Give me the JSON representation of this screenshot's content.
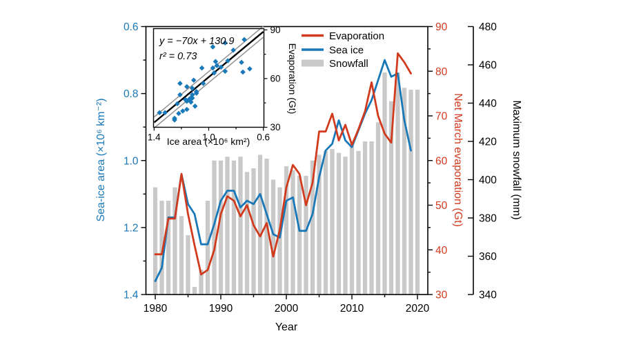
{
  "axes": {
    "x": {
      "label": "Year",
      "major_ticks": [
        1980,
        1990,
        2000,
        2010,
        2020
      ],
      "minor_ticks": [
        1985,
        1995,
        2005,
        2015
      ],
      "range": [
        1978.5,
        2021.6
      ]
    },
    "left": {
      "label": "Sea-ice area (×10⁶ km⁻²)",
      "color": "#1878b8",
      "tick_labels": [
        "0.6",
        "0.8",
        "1.0",
        "1.2",
        "1.4"
      ],
      "major_ticks": [
        0.6,
        0.8,
        1.0,
        1.2,
        1.4
      ],
      "minor_ticks": [
        0.7,
        0.9,
        1.1,
        1.3
      ],
      "range": [
        0.6,
        1.4
      ],
      "inverted": true
    },
    "right": {
      "label": "Net March evaporation (Gt)",
      "color": "#d23a1e",
      "major_ticks": [
        30,
        40,
        50,
        60,
        70,
        80,
        90
      ],
      "minor_ticks": [
        35,
        45,
        55,
        65,
        75,
        85
      ],
      "range": [
        30,
        90
      ]
    },
    "far_right": {
      "label": "Maximum snowfall (mm)",
      "color": "#000000",
      "major_ticks": [
        340,
        360,
        380,
        400,
        420,
        440,
        460,
        480
      ],
      "range": [
        340,
        480
      ]
    }
  },
  "legend": {
    "items": [
      {
        "label": "Evaporation",
        "color": "#d23a1e",
        "type": "line"
      },
      {
        "label": "Sea ice",
        "color": "#1878b8",
        "type": "line"
      },
      {
        "label": "Snowfall",
        "color": "#c9c9c9",
        "type": "bar"
      }
    ]
  },
  "chart_data": [
    {
      "type": "combo-bar-line",
      "title": "",
      "xlabel": "Year",
      "x_range": [
        1978.5,
        2021.6
      ],
      "grid": false,
      "series": [
        {
          "name": "Sea ice",
          "type": "line",
          "axis": "left",
          "ylabel": "Sea-ice area (×10⁶ km⁻²)",
          "ylim": [
            0.6,
            1.4
          ],
          "y_inverted": true,
          "color": "#1878b8",
          "years": [
            1980,
            1981,
            1982,
            1983,
            1984,
            1985,
            1986,
            1987,
            1988,
            1989,
            1990,
            1991,
            1992,
            1993,
            1994,
            1995,
            1996,
            1997,
            1998,
            1999,
            2000,
            2001,
            2002,
            2003,
            2004,
            2005,
            2006,
            2007,
            2008,
            2009,
            2010,
            2011,
            2012,
            2013,
            2014,
            2015,
            2016,
            2017,
            2018,
            2019
          ],
          "values": [
            1.36,
            1.32,
            1.17,
            1.17,
            1.04,
            1.13,
            1.16,
            1.25,
            1.25,
            1.19,
            1.12,
            1.09,
            1.09,
            1.14,
            1.12,
            1.13,
            1.1,
            1.16,
            1.22,
            1.23,
            1.12,
            1.11,
            1.21,
            1.21,
            1.16,
            1.05,
            0.97,
            0.95,
            0.88,
            0.94,
            0.96,
            0.91,
            0.86,
            0.82,
            0.76,
            0.7,
            0.75,
            0.74,
            0.88,
            0.97
          ]
        },
        {
          "name": "Evaporation",
          "type": "line",
          "axis": "right",
          "ylabel": "Net March evaporation (Gt)",
          "ylim": [
            30,
            90
          ],
          "color": "#d23a1e",
          "years": [
            1980,
            1981,
            1982,
            1983,
            1984,
            1985,
            1986,
            1987,
            1988,
            1989,
            1990,
            1991,
            1992,
            1993,
            1994,
            1995,
            1996,
            1997,
            1998,
            1999,
            2000,
            2001,
            2002,
            2003,
            2004,
            2005,
            2006,
            2007,
            2008,
            2009,
            2010,
            2011,
            2012,
            2013,
            2014,
            2015,
            2016,
            2017,
            2018,
            2019
          ],
          "values": [
            39,
            39,
            47,
            47,
            57,
            48,
            41,
            34.5,
            35.5,
            40,
            48,
            52,
            51,
            47.5,
            50,
            45.5,
            43,
            46,
            38.5,
            44.5,
            54,
            59,
            57,
            50,
            55,
            66.5,
            66.5,
            70.5,
            64.5,
            68,
            63.5,
            67,
            71,
            77.5,
            70,
            66,
            64,
            84,
            82,
            79.5
          ]
        },
        {
          "name": "Snowfall",
          "type": "bar",
          "axis": "far_right",
          "ylabel": "Maximum snowfall (mm)",
          "ylim": [
            340,
            480
          ],
          "color": "#c9c9c9",
          "years": [
            1980,
            1981,
            1982,
            1983,
            1984,
            1985,
            1986,
            1987,
            1988,
            1989,
            1990,
            1991,
            1992,
            1993,
            1994,
            1995,
            1996,
            1997,
            1998,
            1999,
            2000,
            2001,
            2002,
            2003,
            2004,
            2005,
            2006,
            2007,
            2008,
            2009,
            2010,
            2011,
            2012,
            2013,
            2014,
            2015,
            2016,
            2017,
            2018,
            2019,
            2020
          ],
          "values": [
            396,
            389,
            389,
            396,
            381,
            371,
            344,
            353,
            389,
            410,
            410,
            412,
            410,
            412,
            404,
            406,
            413,
            411,
            400,
            396,
            407,
            405,
            402,
            402,
            410,
            413,
            415,
            416,
            414,
            412,
            418,
            415,
            420,
            420,
            430,
            456,
            441,
            456,
            448,
            447,
            447
          ]
        }
      ]
    },
    {
      "type": "scatter",
      "title": "",
      "xlabel": "Ice area (×10⁶ km²)",
      "ylabel": "Evaporation (Gt)",
      "xlim": [
        1.4,
        0.6
      ],
      "x_inverted": true,
      "ylim": [
        30,
        90
      ],
      "x_tick_labels": [
        "1.4",
        "1.0",
        "0.6"
      ],
      "x_major_ticks": [
        1.4,
        1.0,
        0.6
      ],
      "x_minor_ticks": [
        1.2,
        0.8
      ],
      "y_major_ticks": [
        30,
        60,
        90
      ],
      "y_minor_ticks": [
        45,
        75
      ],
      "annotation_equation": "y = −70x + 130.9",
      "annotation_r2": "r² = 0.73",
      "regression": {
        "slope": -70,
        "intercept": 130.9,
        "r_squared": 0.73
      },
      "marker": {
        "shape": "diamond",
        "color": "#1878b8"
      },
      "points": [
        [
          1.36,
          39
        ],
        [
          1.32,
          39
        ],
        [
          1.17,
          47
        ],
        [
          1.17,
          47
        ],
        [
          1.04,
          57
        ],
        [
          1.13,
          48
        ],
        [
          1.16,
          41
        ],
        [
          1.25,
          34.5
        ],
        [
          1.25,
          35.5
        ],
        [
          1.19,
          40
        ],
        [
          1.12,
          48
        ],
        [
          1.09,
          52
        ],
        [
          1.09,
          51
        ],
        [
          1.14,
          47.5
        ],
        [
          1.12,
          50
        ],
        [
          1.13,
          45.5
        ],
        [
          1.1,
          43
        ],
        [
          1.16,
          46
        ],
        [
          1.22,
          38.5
        ],
        [
          1.23,
          44.5
        ],
        [
          1.12,
          54
        ],
        [
          1.11,
          59
        ],
        [
          1.21,
          57
        ],
        [
          1.21,
          50
        ],
        [
          1.16,
          55
        ],
        [
          1.05,
          66.5
        ],
        [
          0.97,
          66.5
        ],
        [
          0.95,
          70.5
        ],
        [
          0.88,
          64.5
        ],
        [
          0.94,
          68
        ],
        [
          0.96,
          63.5
        ],
        [
          0.91,
          67
        ],
        [
          0.86,
          71
        ],
        [
          0.82,
          77.5
        ],
        [
          0.76,
          70
        ],
        [
          0.7,
          66
        ],
        [
          0.75,
          64
        ],
        [
          0.74,
          84
        ],
        [
          0.88,
          82
        ],
        [
          0.97,
          79.5
        ]
      ]
    }
  ]
}
